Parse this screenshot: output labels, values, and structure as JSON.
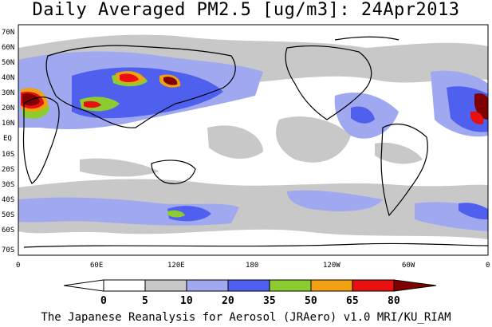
{
  "title": "Daily Averaged PM2.5 [ug/m3]: 24Apr2013",
  "footer": "The Japanese Reanalysis for Aerosol (JRAero) v1.0 MRI/KU_RIAM",
  "axes": {
    "lat_labels": [
      "70N",
      "60N",
      "50N",
      "40N",
      "30N",
      "20N",
      "10N",
      "EQ",
      "10S",
      "20S",
      "30S",
      "40S",
      "50S",
      "60S",
      "70S"
    ],
    "lon_labels": [
      "0",
      "60E",
      "120E",
      "180",
      "120W",
      "60W",
      "0"
    ]
  },
  "colorbar": {
    "levels": [
      "0",
      "5",
      "10",
      "20",
      "35",
      "50",
      "65",
      "80"
    ],
    "colors": [
      "#ffffff",
      "#c8c8c8",
      "#a0a8f0",
      "#5060ee",
      "#8ccc30",
      "#f0a010",
      "#e81010",
      "#800000"
    ]
  }
}
